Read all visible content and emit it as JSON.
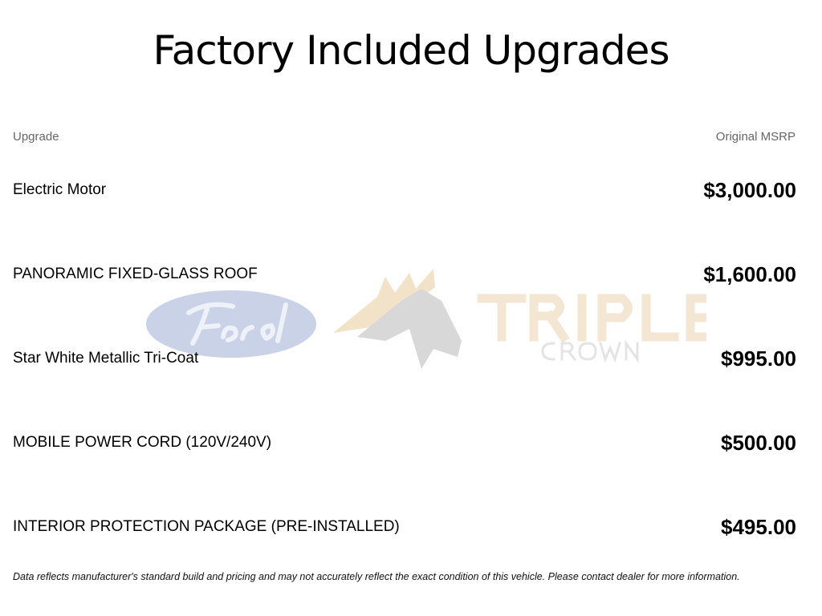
{
  "title": "Factory Included Upgrades",
  "table": {
    "headers": {
      "upgrade": "Upgrade",
      "msrp": "Original MSRP"
    },
    "rows": [
      {
        "name": "Electric Motor",
        "price": "$3,000.00"
      },
      {
        "name": "PANORAMIC FIXED-GLASS ROOF",
        "price": "$1,600.00"
      },
      {
        "name": "Star White Metallic Tri-Coat",
        "price": "$995.00"
      },
      {
        "name": "MOBILE POWER CORD (120V/240V)",
        "price": "$500.00"
      },
      {
        "name": "INTERIOR PROTECTION PACKAGE (PRE-INSTALLED)",
        "price": "$495.00"
      }
    ]
  },
  "watermark": {
    "ford": "Ford",
    "dealer_line1": "TRIPLE",
    "dealer_line2": "CROWN"
  },
  "footer": "Data reflects manufacturer's standard build and pricing and may not accurately reflect the exact condition of this vehicle. Please contact dealer for more information."
}
